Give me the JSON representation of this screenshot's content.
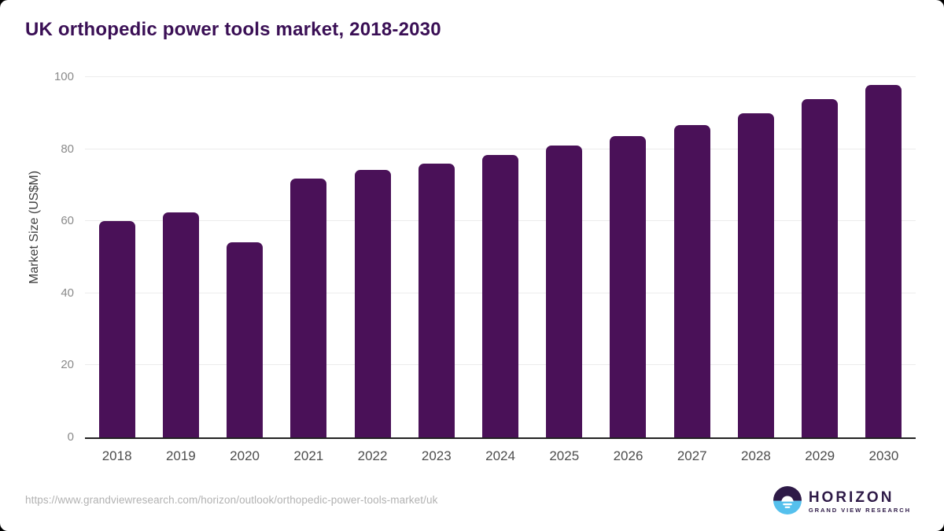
{
  "page": {
    "title": "UK orthopedic power tools market, 2018-2030"
  },
  "chart_data": {
    "type": "bar",
    "title": "UK orthopedic power tools market, 2018-2030",
    "categories": [
      "2018",
      "2019",
      "2020",
      "2021",
      "2022",
      "2023",
      "2024",
      "2025",
      "2026",
      "2027",
      "2028",
      "2029",
      "2030"
    ],
    "values": [
      60.0,
      62.4,
      54.2,
      71.9,
      74.3,
      76.0,
      78.4,
      81.0,
      83.6,
      86.7,
      90.0,
      93.9,
      97.8
    ],
    "xlabel": "",
    "ylabel": "Market Size (US$M)",
    "ylim": [
      0,
      100
    ],
    "yticks": [
      0,
      20,
      40,
      60,
      80,
      100
    ],
    "grid": true,
    "legend": false,
    "bar_color": "#4a1158"
  },
  "footer": {
    "source_url": "https://www.grandviewresearch.com/horizon/outlook/orthopedic-power-tools-market/uk",
    "logo": {
      "brand": "HORIZON",
      "sub_brand": "GRAND VIEW RESEARCH"
    }
  },
  "colors": {
    "title_text": "#3a0f55",
    "bar": "#4a1158",
    "logo_purple": "#2e1a47",
    "logo_blue": "#55c0ed",
    "axis_line": "#222222",
    "gridline": "#ececec",
    "y_tick_text": "#8a8a8a",
    "x_tick_text": "#4d4d4d",
    "url_text": "#b2b2b2",
    "card_background": "#ffffff"
  }
}
